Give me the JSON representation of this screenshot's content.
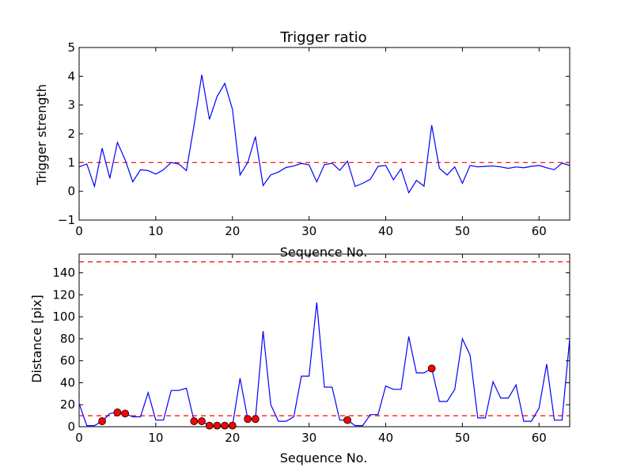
{
  "colors": {
    "series": "#0000ff",
    "threshold": "#ff0000",
    "marker": "#ff0000",
    "axes": "#000000"
  },
  "chart_data": [
    {
      "type": "line",
      "title": "Trigger ratio",
      "xlabel": "Sequence No.",
      "ylabel": "Trigger strength",
      "xlim": [
        0,
        64
      ],
      "ylim": [
        -1,
        5
      ],
      "xticks": [
        "0",
        "10",
        "20",
        "30",
        "40",
        "50",
        "60"
      ],
      "yticks": [
        "−1",
        "0",
        "1",
        "2",
        "3",
        "4",
        "5"
      ],
      "grid": false,
      "x": [
        0,
        1,
        2,
        3,
        4,
        5,
        6,
        7,
        8,
        9,
        10,
        11,
        12,
        13,
        14,
        15,
        16,
        17,
        18,
        19,
        20,
        21,
        22,
        23,
        24,
        25,
        26,
        27,
        28,
        29,
        30,
        31,
        32,
        33,
        34,
        35,
        36,
        37,
        38,
        39,
        40,
        41,
        42,
        43,
        44,
        45,
        46,
        47,
        48,
        49,
        50,
        51,
        52,
        53,
        54,
        55,
        56,
        57,
        58,
        59,
        60,
        61,
        62,
        63,
        64
      ],
      "y": [
        0.85,
        0.95,
        0.17,
        1.5,
        0.45,
        1.7,
        1.1,
        0.33,
        0.75,
        0.72,
        0.6,
        0.75,
        1.0,
        0.95,
        0.72,
        2.3,
        4.05,
        2.5,
        3.3,
        3.75,
        2.85,
        0.57,
        1.0,
        1.9,
        0.2,
        0.57,
        0.67,
        0.83,
        0.88,
        0.97,
        0.92,
        0.33,
        0.93,
        0.98,
        0.73,
        1.05,
        0.17,
        0.28,
        0.42,
        0.87,
        0.9,
        0.4,
        0.78,
        -0.05,
        0.38,
        0.18,
        2.3,
        0.8,
        0.57,
        0.85,
        0.28,
        0.9,
        0.85,
        0.87,
        0.88,
        0.85,
        0.8,
        0.85,
        0.82,
        0.87,
        0.9,
        0.82,
        0.75,
        0.98,
        0.9
      ],
      "threshold": 1
    },
    {
      "type": "line",
      "title": "",
      "xlabel": "Sequence No.",
      "ylabel": "Distance [pix]",
      "xlim": [
        0,
        64
      ],
      "ylim": [
        0,
        157
      ],
      "xticks": [
        "0",
        "10",
        "20",
        "30",
        "40",
        "50",
        "60"
      ],
      "yticks": [
        "0",
        "20",
        "40",
        "60",
        "80",
        "100",
        "120",
        "140"
      ],
      "grid": false,
      "x": [
        0,
        1,
        2,
        3,
        4,
        5,
        6,
        7,
        8,
        9,
        10,
        11,
        12,
        13,
        14,
        15,
        16,
        17,
        18,
        19,
        20,
        21,
        22,
        23,
        24,
        25,
        26,
        27,
        28,
        29,
        30,
        31,
        32,
        33,
        34,
        35,
        36,
        37,
        38,
        39,
        40,
        41,
        42,
        43,
        44,
        45,
        46,
        47,
        48,
        49,
        50,
        51,
        52,
        53,
        54,
        55,
        56,
        57,
        58,
        59,
        60,
        61,
        62,
        63,
        64
      ],
      "y": [
        21,
        1,
        1,
        5,
        12,
        13,
        12,
        9,
        9,
        31,
        6,
        6,
        33,
        33,
        35,
        5,
        5,
        1,
        1,
        1,
        1,
        44,
        7,
        7,
        87,
        20,
        5,
        5,
        9,
        46,
        46,
        113,
        36,
        36,
        6,
        6,
        1,
        1,
        11,
        11,
        37,
        34,
        34,
        82,
        49,
        49,
        53,
        23,
        23,
        34,
        80,
        65,
        8,
        8,
        41,
        26,
        26,
        38,
        5,
        5,
        17,
        57,
        6,
        6,
        80
      ],
      "markers": {
        "x": [
          3,
          5,
          6,
          15,
          16,
          17,
          18,
          19,
          20,
          22,
          23,
          35,
          46
        ],
        "y": [
          5,
          13,
          12,
          5,
          5,
          1,
          1,
          1,
          1,
          7,
          7,
          6,
          53
        ]
      },
      "thresholds": [
        10,
        150
      ]
    }
  ]
}
